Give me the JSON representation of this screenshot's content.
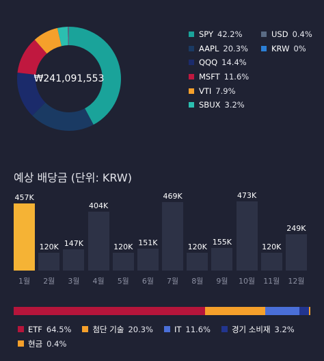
{
  "portfolio": {
    "total": "₩241,091,553",
    "holdings": [
      {
        "ticker": "SPY",
        "pct_label": "42.2%",
        "pct": 42.2,
        "color": "#1aa39a"
      },
      {
        "ticker": "AAPL",
        "pct_label": "20.3%",
        "pct": 20.3,
        "color": "#1a3a63"
      },
      {
        "ticker": "QQQ",
        "pct_label": "14.4%",
        "pct": 14.4,
        "color": "#1b2b6b"
      },
      {
        "ticker": "MSFT",
        "pct_label": "11.6%",
        "pct": 11.6,
        "color": "#c0183f"
      },
      {
        "ticker": "VTI",
        "pct_label": "7.9%",
        "pct": 7.9,
        "color": "#f5a02b"
      },
      {
        "ticker": "SBUX",
        "pct_label": "3.2%",
        "pct": 3.2,
        "color": "#2bbfb0"
      },
      {
        "ticker": "USD",
        "pct_label": "0.4%",
        "pct": 0.4,
        "color": "#5a6b84"
      },
      {
        "ticker": "KRW",
        "pct_label": "0%",
        "pct": 0,
        "color": "#2b7fd6"
      }
    ]
  },
  "dividends": {
    "title": "예상 배당금 (단위: KRW)",
    "chart_data": {
      "type": "bar",
      "categories": [
        "1월",
        "2월",
        "3월",
        "4월",
        "5월",
        "6월",
        "7월",
        "8월",
        "9월",
        "10월",
        "11월",
        "12월"
      ],
      "values": [
        457,
        120,
        147,
        404,
        120,
        151,
        469,
        120,
        155,
        473,
        120,
        249
      ],
      "value_labels": [
        "457K",
        "120K",
        "147K",
        "404K",
        "120K",
        "151K",
        "469K",
        "120K",
        "155K",
        "473K",
        "120K",
        "249K"
      ],
      "highlight_index": 0,
      "ylim": [
        0,
        500
      ],
      "highlight_color": "#f5b335",
      "bar_color": "#2d3246"
    }
  },
  "sectors": [
    {
      "name": "ETF",
      "pct_label": "64.5%",
      "pct": 64.5,
      "color": "#b5153b"
    },
    {
      "name": "첨단 기술",
      "pct_label": "20.3%",
      "pct": 20.3,
      "color": "#f5a02b"
    },
    {
      "name": "IT",
      "pct_label": "11.6%",
      "pct": 11.6,
      "color": "#4a6fd8"
    },
    {
      "name": "경기 소비재",
      "pct_label": "3.2%",
      "pct": 3.2,
      "color": "#22358f"
    },
    {
      "name": "현금",
      "pct_label": "0.4%",
      "pct": 0.4,
      "color": "#f5a02b"
    }
  ]
}
